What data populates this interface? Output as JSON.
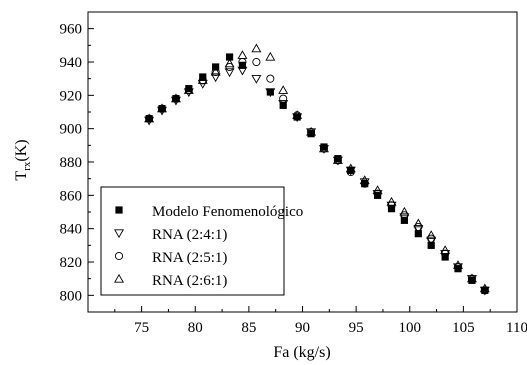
{
  "chart_data": {
    "type": "scatter",
    "xlabel": "Fa (kg/s)",
    "ylabel_main": "T",
    "ylabel_sub": "rx",
    "ylabel_unit": "(K)",
    "xlim": [
      70,
      110
    ],
    "ylim": [
      790,
      970
    ],
    "xticks": [
      75,
      80,
      85,
      90,
      95,
      100,
      105,
      110
    ],
    "yticks": [
      800,
      820,
      840,
      860,
      880,
      900,
      920,
      940,
      960
    ],
    "grid": false,
    "legend_position": "bottom-left",
    "series": [
      {
        "name": "Modelo Fenomenológico",
        "marker": "filled-square",
        "points": [
          [
            75.7,
            906
          ],
          [
            76.9,
            912
          ],
          [
            78.2,
            918
          ],
          [
            79.4,
            924
          ],
          [
            80.7,
            931
          ],
          [
            81.9,
            937
          ],
          [
            83.2,
            943
          ],
          [
            84.4,
            938
          ],
          [
            87,
            922
          ],
          [
            88.2,
            914
          ],
          [
            89.5,
            907
          ],
          [
            90.8,
            897
          ],
          [
            92,
            889
          ],
          [
            93.3,
            882
          ],
          [
            94.5,
            875
          ],
          [
            95.8,
            867
          ],
          [
            97,
            860
          ],
          [
            98.3,
            852
          ],
          [
            99.5,
            845
          ],
          [
            100.8,
            837
          ],
          [
            102,
            830
          ],
          [
            103.3,
            823
          ],
          [
            104.5,
            816
          ],
          [
            105.8,
            809
          ],
          [
            107,
            803
          ]
        ]
      },
      {
        "name": "RNA (2:4:1)",
        "marker": "triangle-down",
        "points": [
          [
            75.7,
            905
          ],
          [
            76.9,
            911
          ],
          [
            78.2,
            917
          ],
          [
            79.4,
            922
          ],
          [
            80.7,
            927
          ],
          [
            81.9,
            931
          ],
          [
            83.2,
            934
          ],
          [
            84.4,
            935
          ],
          [
            85.7,
            930
          ],
          [
            87,
            922
          ],
          [
            88.2,
            915
          ],
          [
            89.5,
            907
          ],
          [
            90.8,
            898
          ],
          [
            92,
            888
          ],
          [
            93.3,
            881
          ],
          [
            94.5,
            875
          ],
          [
            95.8,
            868
          ],
          [
            97,
            861
          ],
          [
            98.3,
            854
          ],
          [
            99.5,
            847
          ],
          [
            100.8,
            840
          ],
          [
            102,
            833
          ],
          [
            103.3,
            825
          ],
          [
            104.5,
            817
          ],
          [
            105.8,
            810
          ],
          [
            107,
            803
          ]
        ]
      },
      {
        "name": "RNA (2:5:1)",
        "marker": "circle",
        "points": [
          [
            75.7,
            906
          ],
          [
            76.9,
            912
          ],
          [
            78.2,
            918
          ],
          [
            79.4,
            923
          ],
          [
            80.7,
            929
          ],
          [
            81.9,
            934
          ],
          [
            83.2,
            937
          ],
          [
            84.4,
            940
          ],
          [
            85.7,
            940
          ],
          [
            87,
            930
          ],
          [
            88.2,
            918
          ],
          [
            89.5,
            908
          ],
          [
            90.8,
            898
          ],
          [
            92,
            888
          ],
          [
            93.3,
            881
          ],
          [
            94.5,
            874
          ],
          [
            95.8,
            867
          ],
          [
            97,
            861
          ],
          [
            98.3,
            854
          ],
          [
            99.5,
            848
          ],
          [
            100.8,
            841
          ],
          [
            102,
            834
          ],
          [
            103.3,
            825
          ],
          [
            104.5,
            817
          ],
          [
            105.8,
            810
          ],
          [
            107,
            803
          ]
        ]
      },
      {
        "name": "RNA (2:6:1)",
        "marker": "triangle-up",
        "points": [
          [
            75.7,
            906
          ],
          [
            76.9,
            912
          ],
          [
            78.2,
            918
          ],
          [
            79.4,
            923
          ],
          [
            80.7,
            929
          ],
          [
            81.9,
            934
          ],
          [
            83.2,
            939
          ],
          [
            84.4,
            944
          ],
          [
            85.7,
            948
          ],
          [
            87,
            943
          ],
          [
            88.2,
            923
          ],
          [
            89.5,
            908
          ],
          [
            90.8,
            898
          ],
          [
            92,
            888
          ],
          [
            93.3,
            881
          ],
          [
            94.5,
            876
          ],
          [
            95.8,
            869
          ],
          [
            97,
            863
          ],
          [
            98.3,
            856
          ],
          [
            99.5,
            850
          ],
          [
            100.8,
            843
          ],
          [
            102,
            836
          ],
          [
            103.3,
            827
          ],
          [
            104.5,
            818
          ],
          [
            105.8,
            810
          ],
          [
            107,
            804
          ]
        ]
      }
    ]
  }
}
